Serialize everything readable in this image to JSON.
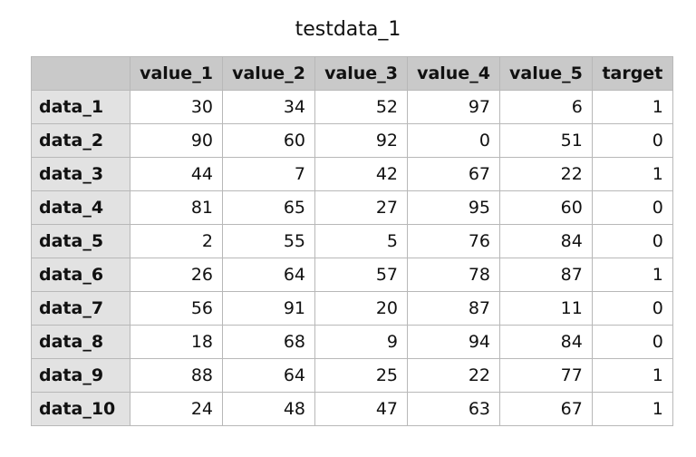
{
  "header": {
    "title": "testdata_1"
  },
  "table": {
    "columns": [
      "value_1",
      "value_2",
      "value_3",
      "value_4",
      "value_5",
      "target"
    ],
    "row_labels": [
      "data_1",
      "data_2",
      "data_3",
      "data_4",
      "data_5",
      "data_6",
      "data_7",
      "data_8",
      "data_9",
      "data_10"
    ],
    "rows": [
      [
        30,
        34,
        52,
        97,
        6,
        1
      ],
      [
        90,
        60,
        92,
        0,
        51,
        0
      ],
      [
        44,
        7,
        42,
        67,
        22,
        1
      ],
      [
        81,
        65,
        27,
        95,
        60,
        0
      ],
      [
        2,
        55,
        5,
        76,
        84,
        0
      ],
      [
        26,
        64,
        57,
        78,
        87,
        1
      ],
      [
        56,
        91,
        20,
        87,
        11,
        0
      ],
      [
        18,
        68,
        9,
        94,
        84,
        0
      ],
      [
        88,
        64,
        25,
        22,
        77,
        1
      ],
      [
        24,
        48,
        47,
        63,
        67,
        1
      ]
    ]
  }
}
